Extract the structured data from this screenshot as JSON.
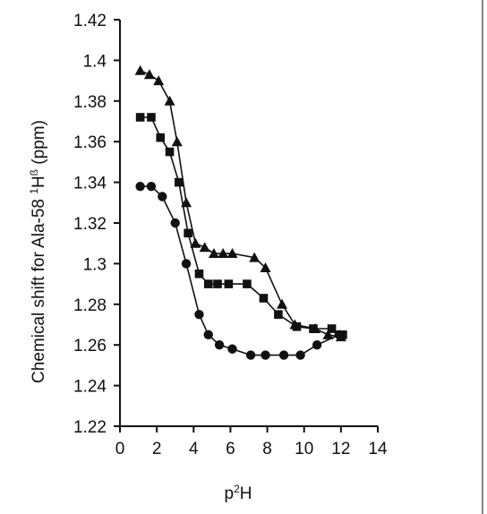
{
  "chart_data": {
    "type": "line",
    "xlabel": "p²H",
    "ylabel": "Chemical shift for Ala-58 ¹Hᵝ (ppm)",
    "ylabel_parts": {
      "main": "Chemical shift for Ala-58 ",
      "sup1": "1",
      "h": "H",
      "sup2": "ß",
      "unit": " (ppm)"
    },
    "xlabel_parts": {
      "p": "p",
      "sup": "2",
      "h": "H"
    },
    "xlim": [
      0,
      14
    ],
    "ylim": [
      1.22,
      1.42
    ],
    "xticks": [
      "0",
      "2",
      "4",
      "6",
      "8",
      "10",
      "12",
      "14"
    ],
    "yticks": [
      "1.22",
      "1.24",
      "1.26",
      "1.28",
      "1.3",
      "1.32",
      "1.34",
      "1.36",
      "1.38",
      "1.4",
      "1.42"
    ],
    "grid": false,
    "legend": "none",
    "series": [
      {
        "marker": "triangle",
        "x": [
          1.1,
          1.6,
          2.1,
          2.7,
          3.1,
          3.6,
          4.1,
          4.6,
          5.1,
          5.6,
          6.1,
          7.3,
          7.9,
          8.8,
          9.5,
          10.6,
          11.3,
          12.0
        ],
        "y": [
          1.395,
          1.393,
          1.39,
          1.38,
          1.36,
          1.33,
          1.31,
          1.308,
          1.305,
          1.305,
          1.305,
          1.303,
          1.298,
          1.28,
          1.27,
          1.268,
          1.265,
          1.264
        ]
      },
      {
        "marker": "square",
        "x": [
          1.1,
          1.7,
          2.2,
          2.7,
          3.2,
          3.7,
          4.3,
          4.8,
          5.3,
          5.9,
          6.9,
          7.8,
          8.6,
          9.6,
          10.5,
          11.5,
          12.1
        ],
        "y": [
          1.372,
          1.372,
          1.362,
          1.355,
          1.34,
          1.315,
          1.295,
          1.29,
          1.29,
          1.29,
          1.29,
          1.283,
          1.275,
          1.269,
          1.268,
          1.268,
          1.265
        ]
      },
      {
        "marker": "circle",
        "x": [
          1.1,
          1.7,
          2.3,
          3.0,
          3.6,
          4.3,
          4.8,
          5.4,
          6.1,
          7.1,
          7.9,
          8.9,
          9.8,
          10.7,
          11.9
        ],
        "y": [
          1.338,
          1.338,
          1.333,
          1.32,
          1.3,
          1.275,
          1.265,
          1.26,
          1.258,
          1.255,
          1.255,
          1.255,
          1.255,
          1.26,
          1.265
        ]
      }
    ]
  }
}
